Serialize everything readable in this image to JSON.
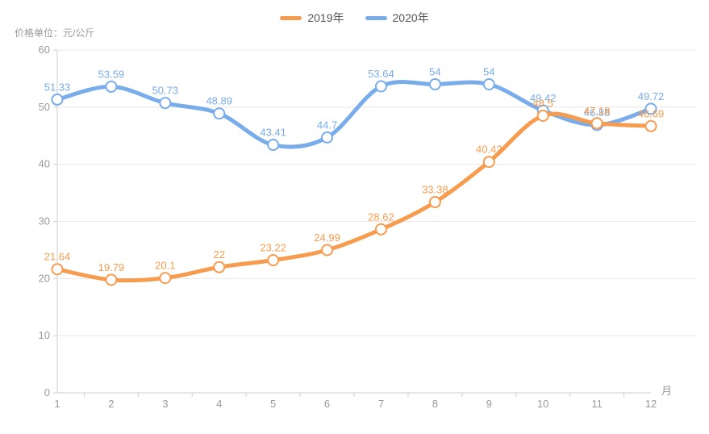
{
  "meta": {
    "unit_label": "价格单位：元/公斤",
    "x_axis_name": "月"
  },
  "legend": [
    {
      "label": "2019年",
      "color": "#F79C4E"
    },
    {
      "label": "2020年",
      "color": "#79ACEA"
    }
  ],
  "chart_data": {
    "type": "line",
    "smooth": true,
    "grid": true,
    "legend_position": "top",
    "x": [
      "1",
      "2",
      "3",
      "4",
      "5",
      "6",
      "7",
      "8",
      "9",
      "10",
      "11",
      "12"
    ],
    "xlabel": "月",
    "ylabel": "价格单位：元/公斤",
    "ylim": [
      0,
      60
    ],
    "yticks": [
      0,
      10,
      20,
      30,
      40,
      50,
      60
    ],
    "series": [
      {
        "name": "2020年",
        "color": "#79ACEA",
        "values": [
          51.33,
          53.59,
          50.73,
          48.89,
          43.41,
          44.7,
          53.64,
          54,
          54,
          49.42,
          46.88,
          49.72
        ]
      },
      {
        "name": "2019年",
        "color": "#F79C4E",
        "values": [
          21.64,
          19.79,
          20.1,
          22,
          23.22,
          24.99,
          28.62,
          33.38,
          40.42,
          48.5,
          47.18,
          46.69
        ]
      }
    ],
    "colors": {
      "grid_line": "#E8E8E8",
      "axis_line": "#CFCFCF",
      "tick_text": "#999999",
      "marker_fill": "#FFFFFF"
    }
  }
}
